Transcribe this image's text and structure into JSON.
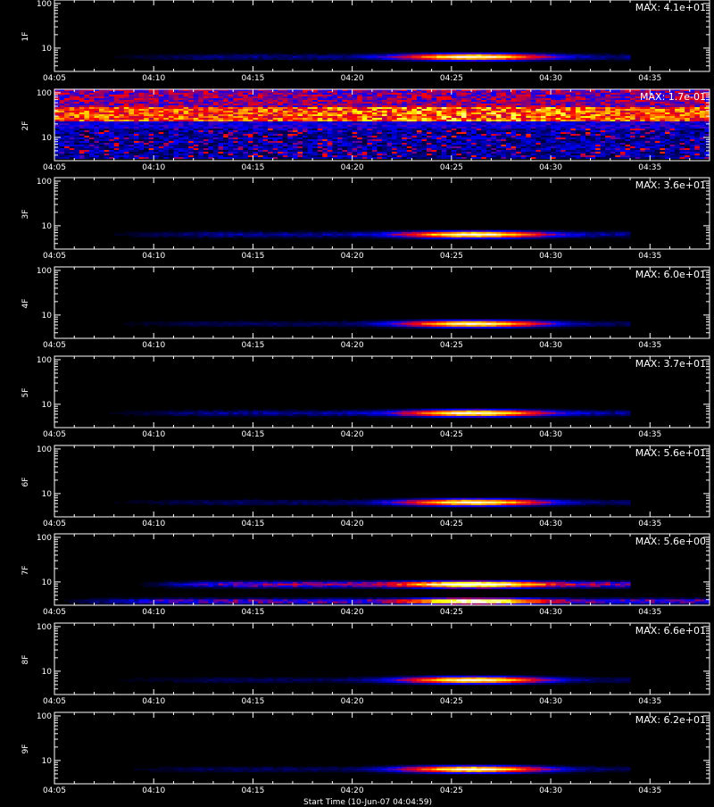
{
  "chart_data": [
    {
      "type": "heatmap",
      "ylabel": "1F",
      "max_label": "MAX: 4.1e+01",
      "max": 41,
      "y_ticks": [
        "100",
        "10"
      ],
      "x_ticks": [
        "04:05",
        "04:10",
        "04:15",
        "04:20",
        "04:25",
        "04:30",
        "04:35"
      ],
      "xlim": [
        "04:05",
        "04:38"
      ],
      "ylim": [
        3,
        120
      ],
      "y_scale": "log",
      "bands": [
        {
          "y_low": 5,
          "y_high": 8,
          "t_start": "04:07",
          "t_end": "04:34",
          "peak_time": "04:26",
          "peak_width_min": 3,
          "peak": 41,
          "background": 3
        }
      ]
    },
    {
      "type": "heatmap",
      "ylabel": "2F",
      "max_label": "MAX: 1.7e-01",
      "max": 0.17,
      "y_ticks": [
        "100",
        "10"
      ],
      "x_ticks": [
        "04:05",
        "04:10",
        "04:15",
        "04:20",
        "04:25",
        "04:30",
        "04:35"
      ],
      "xlim": [
        "04:05",
        "04:38"
      ],
      "ylim": [
        3,
        120
      ],
      "y_scale": "log",
      "noise": true
    },
    {
      "type": "heatmap",
      "ylabel": "3F",
      "max_label": "MAX: 3.6e+01",
      "max": 36,
      "y_ticks": [
        "100",
        "10"
      ],
      "x_ticks": [
        "04:05",
        "04:10",
        "04:15",
        "04:20",
        "04:25",
        "04:30",
        "04:35"
      ],
      "xlim": [
        "04:05",
        "04:38"
      ],
      "ylim": [
        3,
        120
      ],
      "y_scale": "log",
      "bands": [
        {
          "y_low": 5,
          "y_high": 8,
          "t_start": "04:07",
          "t_end": "04:34",
          "peak_time": "04:26",
          "peak_width_min": 3,
          "peak": 36,
          "background": 3
        }
      ]
    },
    {
      "type": "heatmap",
      "ylabel": "4F",
      "max_label": "MAX: 6.0e+01",
      "max": 60,
      "y_ticks": [
        "100",
        "10"
      ],
      "x_ticks": [
        "04:05",
        "04:10",
        "04:15",
        "04:20",
        "04:25",
        "04:30",
        "04:35"
      ],
      "xlim": [
        "04:05",
        "04:38"
      ],
      "ylim": [
        3,
        120
      ],
      "y_scale": "log",
      "bands": [
        {
          "y_low": 5,
          "y_high": 8,
          "t_start": "04:07",
          "t_end": "04:34",
          "peak_time": "04:26",
          "peak_width_min": 3,
          "peak": 60,
          "background": 3
        }
      ]
    },
    {
      "type": "heatmap",
      "ylabel": "5F",
      "max_label": "MAX: 3.7e+01",
      "max": 37,
      "y_ticks": [
        "100",
        "10"
      ],
      "x_ticks": [
        "04:05",
        "04:10",
        "04:15",
        "04:20",
        "04:25",
        "04:30",
        "04:35"
      ],
      "xlim": [
        "04:05",
        "04:38"
      ],
      "ylim": [
        3,
        120
      ],
      "y_scale": "log",
      "bands": [
        {
          "y_low": 5,
          "y_high": 8,
          "t_start": "04:07",
          "t_end": "04:34",
          "peak_time": "04:26",
          "peak_width_min": 3,
          "peak": 37,
          "background": 3
        }
      ]
    },
    {
      "type": "heatmap",
      "ylabel": "6F",
      "max_label": "MAX: 5.6e+01",
      "max": 56,
      "y_ticks": [
        "100",
        "10"
      ],
      "x_ticks": [
        "04:05",
        "04:10",
        "04:15",
        "04:20",
        "04:25",
        "04:30",
        "04:35"
      ],
      "xlim": [
        "04:05",
        "04:38"
      ],
      "ylim": [
        3,
        120
      ],
      "y_scale": "log",
      "bands": [
        {
          "y_low": 5,
          "y_high": 8,
          "t_start": "04:07",
          "t_end": "04:34",
          "peak_time": "04:26",
          "peak_width_min": 3,
          "peak": 56,
          "background": 3
        }
      ]
    },
    {
      "type": "heatmap",
      "ylabel": "7F",
      "max_label": "MAX: 5.6e+00",
      "max": 5.6,
      "y_ticks": [
        "100",
        "10"
      ],
      "x_ticks": [
        "04:05",
        "04:10",
        "04:15",
        "04:20",
        "04:25",
        "04:30",
        "04:35"
      ],
      "xlim": [
        "04:05",
        "04:38"
      ],
      "ylim": [
        3,
        120
      ],
      "y_scale": "log",
      "bands": [
        {
          "y_low": 7,
          "y_high": 11,
          "t_start": "04:09",
          "t_end": "04:34",
          "peak_time": "04:26",
          "peak_width_min": 3,
          "peak": 5.6,
          "background": 1.5
        },
        {
          "y_low": 3,
          "y_high": 4.5,
          "t_start": "04:05",
          "t_end": "04:38",
          "peak_time": "04:26",
          "peak_width_min": 3,
          "peak": 1.5,
          "background": 1.2
        }
      ]
    },
    {
      "type": "heatmap",
      "ylabel": "8F",
      "max_label": "MAX: 6.6e+01",
      "max": 66,
      "y_ticks": [
        "100",
        "10"
      ],
      "x_ticks": [
        "04:05",
        "04:10",
        "04:15",
        "04:20",
        "04:25",
        "04:30",
        "04:35"
      ],
      "xlim": [
        "04:05",
        "04:38"
      ],
      "ylim": [
        3,
        120
      ],
      "y_scale": "log",
      "bands": [
        {
          "y_low": 5,
          "y_high": 8,
          "t_start": "04:07",
          "t_end": "04:34",
          "peak_time": "04:26",
          "peak_width_min": 3,
          "peak": 66,
          "background": 3
        }
      ]
    },
    {
      "type": "heatmap",
      "ylabel": "9F",
      "max_label": "MAX: 6.2e+01",
      "max": 62,
      "y_ticks": [
        "100",
        "10"
      ],
      "x_ticks": [
        "04:05",
        "04:10",
        "04:15",
        "04:20",
        "04:25",
        "04:30",
        "04:35"
      ],
      "xlim": [
        "04:05",
        "04:38"
      ],
      "ylim": [
        3,
        120
      ],
      "y_scale": "log",
      "bands": [
        {
          "y_low": 5,
          "y_high": 8,
          "t_start": "04:07",
          "t_end": "04:34",
          "peak_time": "04:26",
          "peak_width_min": 3,
          "peak": 62,
          "background": 3
        }
      ]
    }
  ],
  "x_axis_label": "Start Time (10-Jun-07 04:04:59)",
  "colormap": [
    "#000000",
    "#0000ff",
    "#ff0000",
    "#ffff00",
    "#ffffff"
  ]
}
